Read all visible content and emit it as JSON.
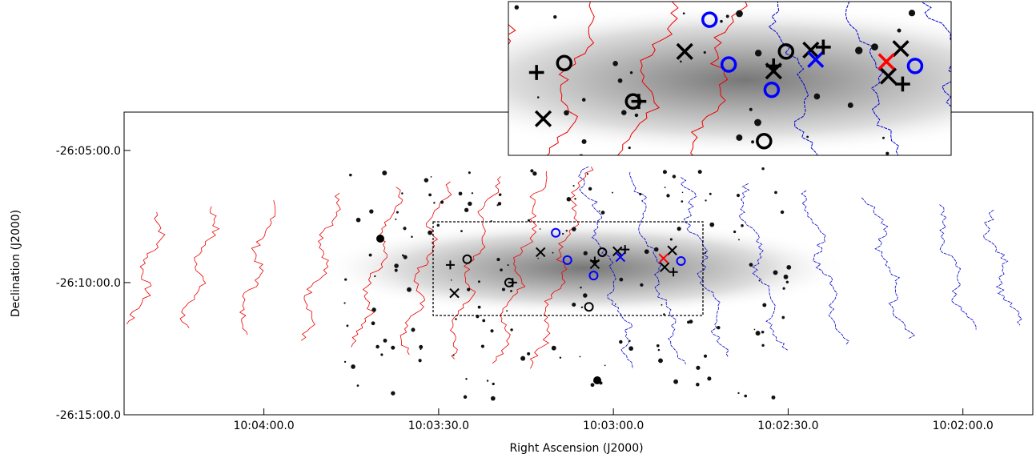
{
  "chart_data": {
    "type": "scatter",
    "x_label": "Right Ascension (J2000)",
    "y_label": "Declination (J2000)",
    "xlim": [
      36264,
      36108
    ],
    "ylim": [
      -94500,
      -93813
    ],
    "xticks": [
      {
        "value": 36240,
        "label": "10:04:00.0"
      },
      {
        "value": 36210,
        "label": "10:03:30.0"
      },
      {
        "value": 36180,
        "label": "10:03:00.0"
      },
      {
        "value": 36150,
        "label": "10:02:30.0"
      },
      {
        "value": 36120,
        "label": "10:02:00.0"
      }
    ],
    "yticks": [
      {
        "value": -93900,
        "label": "-26:05:00.0"
      },
      {
        "value": -94200,
        "label": "-26:10:00.0"
      },
      {
        "value": -94500,
        "label": "-26:15:00.0"
      }
    ],
    "series": [
      {
        "marker": "circle",
        "color": "#000000",
        "x": [
          36205.1,
          36197.9,
          36181.9,
          36184.2
        ],
        "values": [
          -94147,
          -94200,
          -94131,
          -94255
        ]
      },
      {
        "marker": "circle",
        "color": "#0000ff",
        "x": [
          36189.9,
          36187.9,
          36183.4,
          36168.4
        ],
        "values": [
          -94087,
          -94149,
          -94184,
          -94151
        ]
      },
      {
        "marker": "cross",
        "color": "#000000",
        "x": [
          36207.3,
          36192.5,
          36183.2,
          36169.9,
          36171.2,
          36179.3
        ],
        "values": [
          -94224,
          -94131,
          -94158,
          -94127,
          -94165,
          -94129
        ]
      },
      {
        "marker": "cross",
        "color": "#0000ff",
        "x": [
          36178.8
        ],
        "values": [
          -94142
        ]
      },
      {
        "marker": "plus",
        "color": "#000000",
        "x": [
          36208.0,
          36197.3,
          36178.0,
          36169.7,
          36183.2
        ],
        "values": [
          -94160,
          -94200,
          -94125,
          -94176,
          -94151
        ]
      },
      {
        "marker": "cross",
        "color": "#ff0000",
        "x": [
          36171.4
        ],
        "values": [
          -94145
        ]
      }
    ]
  }
}
